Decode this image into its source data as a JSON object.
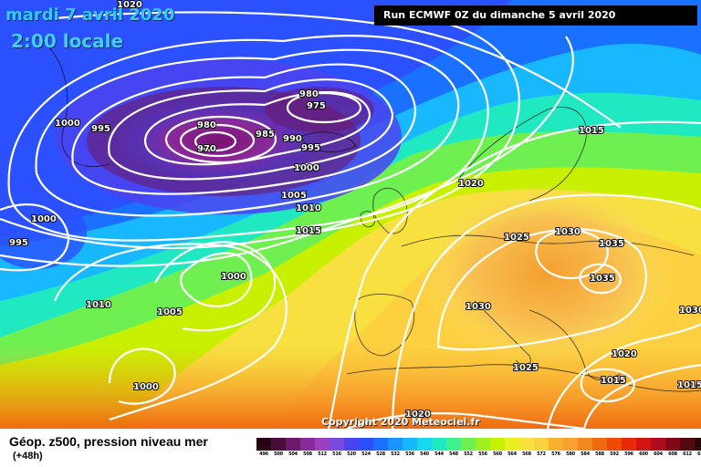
{
  "header": {
    "date_line": "mardi 7 avril 2020",
    "local_time": "2:00 locale",
    "run_info": "Run ECMWF 0Z du dimanche 5 avril 2020"
  },
  "copyright": "Copyright 2020 Meteociel.fr",
  "footer": {
    "title": "Géop. z500, pression niveau mer",
    "lead_time": "(+48h)"
  },
  "scale": {
    "ticks": [
      "496",
      "500",
      "504",
      "508",
      "512",
      "516",
      "520",
      "524",
      "528",
      "532",
      "536",
      "540",
      "544",
      "548",
      "552",
      "556",
      "560",
      "564",
      "568",
      "572",
      "576",
      "580",
      "584",
      "588",
      "592",
      "596",
      "600",
      "604",
      "608",
      "612",
      "616"
    ],
    "colors": [
      "#2a0016",
      "#4a0a3a",
      "#6b1a6b",
      "#8a2a9a",
      "#9a40c0",
      "#7a4ae0",
      "#4a44f0",
      "#2a50ff",
      "#1a70ff",
      "#1a95ff",
      "#18b8ff",
      "#18d8f0",
      "#20e8c0",
      "#40f08a",
      "#70f050",
      "#a0f020",
      "#c8f000",
      "#e8f020",
      "#f8e040",
      "#fcd040",
      "#f8b030",
      "#f8a030",
      "#f08a20",
      "#f06a10",
      "#f04a08",
      "#e82a08",
      "#d01410",
      "#b00c20",
      "#800818",
      "#500a10",
      "#2a0608"
    ]
  },
  "isobars": {
    "labels": [
      {
        "text": "1020",
        "label": "north-1020"
      },
      {
        "text": "1000",
        "label": "west-1000"
      },
      {
        "text": "995",
        "label": "west-995"
      },
      {
        "text": "980",
        "label": "low-980-a"
      },
      {
        "text": "975",
        "label": "low-975"
      },
      {
        "text": "980",
        "label": "low-980-b"
      },
      {
        "text": "970",
        "label": "low-970"
      },
      {
        "text": "985",
        "label": "low-985"
      },
      {
        "text": "990",
        "label": "low-990"
      },
      {
        "text": "995",
        "label": "low-995"
      },
      {
        "text": "1000",
        "label": "mid-1000"
      },
      {
        "text": "1005",
        "label": "mid-1005"
      },
      {
        "text": "1010",
        "label": "mid-1010"
      },
      {
        "text": "1015",
        "label": "mid-1015"
      },
      {
        "text": "1020",
        "label": "north-sea-1020"
      },
      {
        "text": "1015",
        "label": "scandinavia-1015"
      },
      {
        "text": "1000",
        "label": "sw-1000-a"
      },
      {
        "text": "995",
        "label": "sw-995"
      },
      {
        "text": "1000",
        "label": "atl-1000"
      },
      {
        "text": "1010",
        "label": "atl-1010"
      },
      {
        "text": "1005",
        "label": "atl-1005"
      },
      {
        "text": "1000",
        "label": "atl-1000-south"
      },
      {
        "text": "1025",
        "label": "europe-1025"
      },
      {
        "text": "1030",
        "label": "europe-1030-a"
      },
      {
        "text": "1035",
        "label": "europe-1035-a"
      },
      {
        "text": "1035",
        "label": "europe-1035-b"
      },
      {
        "text": "1030",
        "label": "europe-1030-b"
      },
      {
        "text": "1030",
        "label": "east-1030"
      },
      {
        "text": "1025",
        "label": "med-1025"
      },
      {
        "text": "1020",
        "label": "greece-1020"
      },
      {
        "text": "1015",
        "label": "greece-1015"
      },
      {
        "text": "1015",
        "label": "east-1015"
      },
      {
        "text": "1020",
        "label": "africa-1020"
      }
    ]
  }
}
